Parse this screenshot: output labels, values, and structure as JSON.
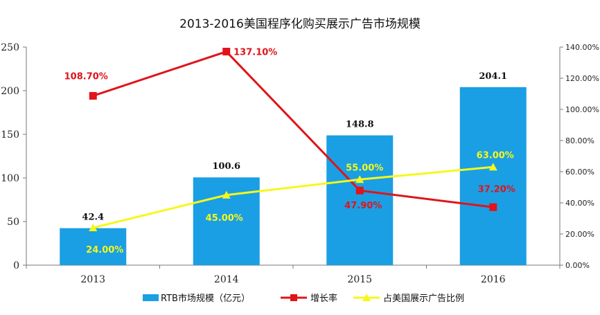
{
  "chart_data": {
    "type": "bar",
    "title": "2013-2016美国程序化购买展示广告市场规模",
    "categories": [
      "2013",
      "2014",
      "2015",
      "2016"
    ],
    "y_left": {
      "ylim": [
        0,
        250
      ],
      "ticks": [
        "0",
        "50",
        "100",
        "150",
        "200",
        "250"
      ]
    },
    "y_right": {
      "ylim": [
        0,
        140
      ],
      "unit": "%",
      "ticks": [
        "0.00%",
        "20.00%",
        "40.00%",
        "60.00%",
        "80.00%",
        "100.00%",
        "120.00%",
        "140.00%"
      ]
    },
    "series": [
      {
        "name": "RTB市场规模（亿元）",
        "type": "bar",
        "axis": "left",
        "color": "#1a9fe4",
        "values": [
          42.4,
          100.6,
          148.8,
          204.1
        ],
        "labels": [
          "42.4",
          "100.6",
          "148.8",
          "204.1"
        ]
      },
      {
        "name": "增长率",
        "type": "line",
        "axis": "right",
        "color": "#e0141a",
        "marker": "square",
        "values": [
          108.7,
          137.1,
          47.9,
          37.2
        ],
        "labels": [
          "108.70%",
          "137.10%",
          "47.90%",
          "37.20%"
        ]
      },
      {
        "name": "占美国展示广告比例",
        "type": "line",
        "axis": "right",
        "color": "#f7f71c",
        "marker": "triangle",
        "values": [
          24.0,
          45.0,
          55.0,
          63.0
        ],
        "labels": [
          "24.00%",
          "45.00%",
          "55.00%",
          "63.00%"
        ]
      }
    ],
    "legend_position": "bottom",
    "grid": false
  }
}
